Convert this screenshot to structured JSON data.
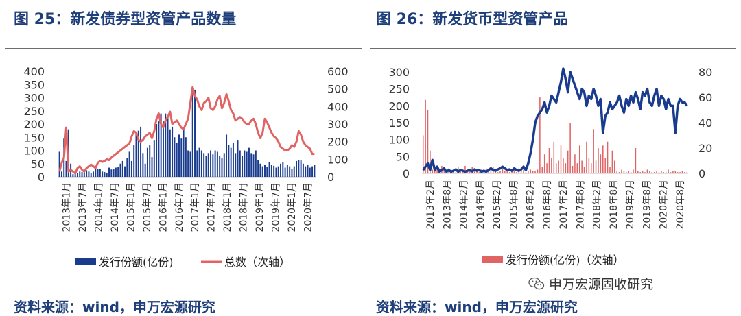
{
  "left_panel": {
    "title": "图 25：新发债券型资管产品数量",
    "source": "资料来源：wind，申万宏源研究"
  },
  "right_panel": {
    "title": "图 26：新发货币型资管产品",
    "source": "资料来源：wind，申万宏源研究"
  },
  "watermark": {
    "text": "申万宏源固收研究",
    "icon": "wechat-icon"
  },
  "colors": {
    "primary_series": "#1a3c8f",
    "secondary_series": "#e06464",
    "title": "#1f3f7a"
  },
  "chart_data": [
    {
      "type": "bar+line",
      "xlabels": [
        "2013年1月",
        "2013年7月",
        "2014年1月",
        "2014年7月",
        "2015年1月",
        "2015年7月",
        "2016年1月",
        "2016年7月",
        "2017年1月",
        "2017年7月",
        "2018年1月",
        "2018年7月",
        "2019年1月",
        "2019年7月",
        "2020年1月",
        "2020年7月"
      ],
      "y_left": {
        "ticks": [
          0,
          50,
          100,
          150,
          200,
          250,
          300,
          350,
          400
        ],
        "lim": [
          0,
          400
        ]
      },
      "y_right": {
        "ticks": [
          0,
          100,
          200,
          300,
          400,
          500,
          600
        ],
        "lim": [
          0,
          600
        ]
      },
      "legend": [
        {
          "label": "发行份额(亿份)",
          "style": "bar"
        },
        {
          "label": "总数（次轴）",
          "style": "line"
        }
      ],
      "series": [
        {
          "name": "发行份额(亿份)",
          "axis": "left",
          "kind": "bar",
          "values": [
            95,
            20,
            145,
            60,
            180,
            50,
            10,
            12,
            15,
            20,
            18,
            22,
            25,
            20,
            15,
            20,
            35,
            30,
            30,
            20,
            18,
            15,
            35,
            28,
            30,
            35,
            38,
            50,
            60,
            40,
            70,
            95,
            60,
            120,
            170,
            175,
            190,
            90,
            50,
            110,
            120,
            75,
            140,
            200,
            210,
            240,
            210,
            240,
            230,
            180,
            190,
            150,
            130,
            160,
            145,
            180,
            150,
            100,
            95,
            335,
            330,
            100,
            110,
            100,
            90,
            80,
            90,
            100,
            85,
            100,
            95,
            80,
            70,
            90,
            160,
            120,
            110,
            130,
            90,
            140,
            100,
            80,
            100,
            95,
            110,
            90,
            85,
            100,
            65,
            50,
            40,
            45,
            38,
            55,
            45,
            42,
            35,
            40,
            50,
            55,
            35,
            45,
            40,
            30,
            40,
            60,
            65,
            62,
            50,
            40,
            45,
            35,
            40,
            45
          ]
        },
        {
          "name": "总数（次轴）",
          "axis": "right",
          "kind": "line",
          "values": [
            30,
            80,
            110,
            280,
            30,
            40,
            30,
            20,
            50,
            60,
            40,
            30,
            50,
            60,
            70,
            60,
            50,
            80,
            90,
            85,
            90,
            100,
            95,
            110,
            120,
            130,
            140,
            150,
            160,
            170,
            180,
            190,
            230,
            260,
            250,
            210,
            200,
            210,
            230,
            240,
            250,
            220,
            260,
            330,
            360,
            300,
            280,
            320,
            340,
            370,
            300,
            310,
            320,
            300,
            280,
            270,
            300,
            330,
            420,
            510,
            460,
            440,
            400,
            380,
            420,
            430,
            450,
            390,
            380,
            400,
            440,
            460,
            390,
            420,
            470,
            430,
            380,
            360,
            320,
            330,
            340,
            330,
            310,
            300,
            300,
            320,
            330,
            300,
            250,
            220,
            250,
            330,
            310,
            280,
            250,
            230,
            220,
            200,
            170,
            160,
            150,
            150,
            160,
            180,
            170,
            200,
            260,
            240,
            200,
            180,
            170,
            160,
            130,
            130
          ]
        }
      ]
    },
    {
      "type": "bar+line",
      "xlabels": [
        "2013年2月",
        "2013年8月",
        "2014年2月",
        "2014年8月",
        "2015年2月",
        "2015年8月",
        "2016年2月",
        "2016年8月",
        "2017年2月",
        "2017年8月",
        "2018年2月",
        "2018年8月",
        "2019年2月",
        "2019年8月",
        "2020年2月",
        "2020年8月"
      ],
      "y_left": {
        "ticks": [
          0,
          50,
          100,
          150,
          200,
          250,
          300
        ],
        "lim": [
          0,
          300
        ]
      },
      "y_right": {
        "ticks": [
          0,
          20,
          40,
          60,
          80
        ],
        "lim": [
          0,
          80
        ]
      },
      "legend": [
        {
          "label": "发行份额(亿份)（次轴）",
          "style": "bar"
        }
      ],
      "series": [
        {
          "name": "发行份额(亿份)（次轴）",
          "axis": "right",
          "kind": "bar",
          "values": [
            30,
            58,
            50,
            18,
            3,
            3,
            5,
            1,
            6,
            4,
            2,
            4,
            3,
            2,
            1,
            5,
            3,
            2,
            6,
            3,
            2,
            5,
            3,
            2,
            1,
            3,
            2,
            4,
            3,
            2,
            5,
            3,
            1,
            2,
            4,
            2,
            3,
            1,
            2,
            3,
            1,
            4,
            2,
            3,
            1,
            2,
            3,
            2,
            2,
            3,
            60,
            5,
            15,
            8,
            20,
            12,
            25,
            8,
            10,
            22,
            12,
            8,
            18,
            40,
            6,
            15,
            8,
            22,
            10,
            5,
            25,
            12,
            8,
            35,
            10,
            20,
            15,
            22,
            12,
            25,
            5,
            18,
            10,
            2,
            1,
            3,
            2,
            1,
            2,
            1,
            3,
            20,
            2,
            1,
            2,
            1,
            3,
            2,
            1,
            1,
            2,
            1,
            2,
            1,
            1,
            3,
            1,
            2,
            2,
            1,
            1,
            2,
            1,
            1
          ]
        },
        {
          "name": "",
          "axis": "left",
          "kind": "line",
          "values": [
            10,
            20,
            30,
            10,
            40,
            10,
            20,
            5,
            10,
            15,
            5,
            10,
            5,
            8,
            12,
            5,
            10,
            8,
            5,
            8,
            10,
            6,
            12,
            8,
            10,
            5,
            8,
            5,
            10,
            15,
            10,
            8,
            12,
            15,
            20,
            15,
            10,
            12,
            8,
            15,
            10,
            8,
            12,
            20,
            10,
            30,
            60,
            100,
            150,
            170,
            180,
            190,
            210,
            180,
            200,
            230,
            220,
            210,
            240,
            270,
            310,
            280,
            240,
            300,
            280,
            260,
            240,
            220,
            250,
            240,
            200,
            230,
            220,
            250,
            230,
            200,
            220,
            120,
            170,
            180,
            210,
            190,
            200,
            210,
            230,
            200,
            180,
            220,
            200,
            230,
            210,
            240,
            220,
            190,
            240,
            230,
            250,
            210,
            200,
            230,
            250,
            200,
            230,
            220,
            190,
            220,
            200,
            200,
            120,
            200,
            220,
            210,
            210,
            200
          ]
        }
      ]
    }
  ]
}
